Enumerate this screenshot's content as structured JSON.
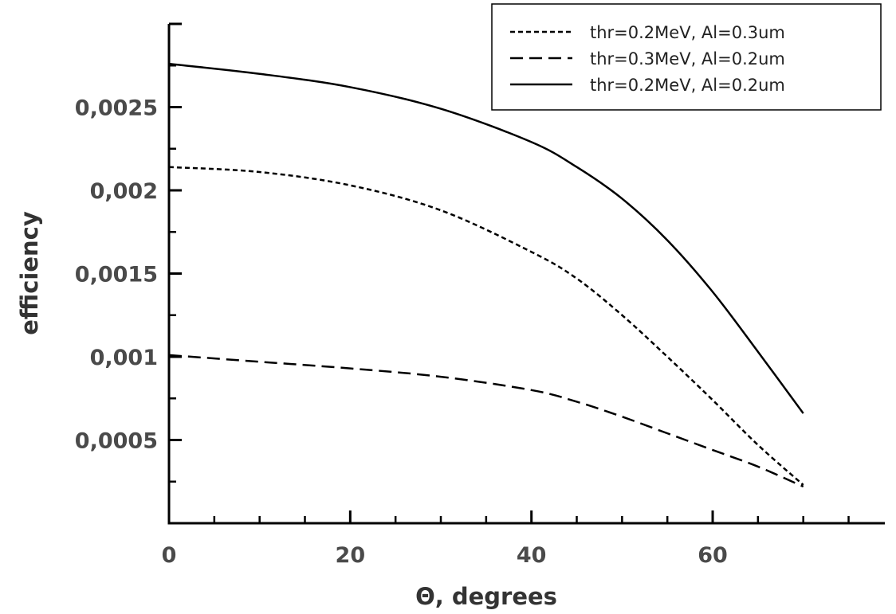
{
  "chart_data": {
    "type": "line",
    "title": "",
    "xlabel": "Θ, degrees",
    "ylabel": "efficiency",
    "xlim": [
      0,
      79
    ],
    "ylim": [
      0,
      0.003
    ],
    "x_ticks": [
      0,
      20,
      40,
      60
    ],
    "x_tick_labels": [
      "0",
      "20",
      "40",
      "60"
    ],
    "y_ticks": [
      0.0005,
      0.001,
      0.0015,
      0.002,
      0.0025
    ],
    "y_tick_labels": [
      "0,0005",
      "0,001",
      "0,0015",
      "0,002",
      "0,0025"
    ],
    "grid": false,
    "legend_position": "top-right",
    "series": [
      {
        "name": "thr=0.2MeV, Al=0.3um",
        "style": "dotted",
        "x": [
          0,
          10,
          20,
          30,
          40,
          45,
          50,
          55,
          60,
          65,
          70
        ],
        "y": [
          0.00214,
          0.00211,
          0.00203,
          0.00188,
          0.00163,
          0.00147,
          0.00125,
          0.001,
          0.00074,
          0.00047,
          0.00023
        ]
      },
      {
        "name": "thr=0.3MeV, Al=0.2um",
        "style": "dashed",
        "x": [
          0,
          10,
          20,
          30,
          40,
          45,
          50,
          55,
          60,
          65,
          70
        ],
        "y": [
          0.00101,
          0.00097,
          0.00093,
          0.00088,
          0.0008,
          0.00073,
          0.00064,
          0.00054,
          0.00044,
          0.00034,
          0.00022
        ]
      },
      {
        "name": "thr=0.2MeV, Al=0.2um",
        "style": "solid",
        "x": [
          0,
          10,
          20,
          30,
          40,
          45,
          50,
          55,
          60,
          65,
          70
        ],
        "y": [
          0.00276,
          0.0027,
          0.00262,
          0.00249,
          0.00229,
          0.00214,
          0.00195,
          0.0017,
          0.00139,
          0.00103,
          0.00066
        ]
      }
    ]
  }
}
